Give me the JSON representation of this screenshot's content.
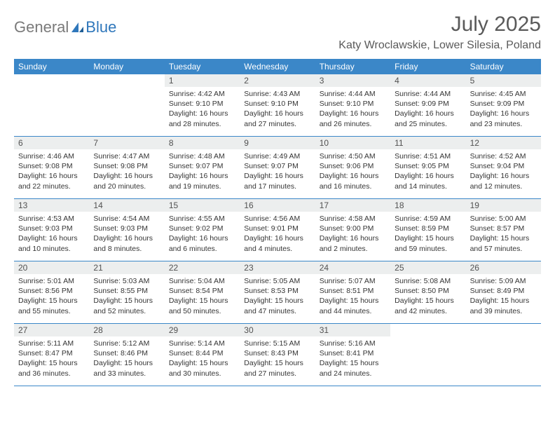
{
  "brand": {
    "part1": "General",
    "part2": "Blue"
  },
  "title": "July 2025",
  "location": "Katy Wroclawskie, Lower Silesia, Poland",
  "colors": {
    "header_bg": "#3b87c8",
    "header_text": "#ffffff",
    "daynum_bg": "#eceeee",
    "daynum_text": "#525252",
    "body_text": "#353535",
    "title_text": "#5a5a5a",
    "logo_gray": "#7a7a7a",
    "logo_blue": "#2f77bb",
    "row_border": "#3b87c8",
    "page_bg": "#ffffff"
  },
  "weekdays": [
    "Sunday",
    "Monday",
    "Tuesday",
    "Wednesday",
    "Thursday",
    "Friday",
    "Saturday"
  ],
  "weeks": [
    [
      {
        "n": "",
        "sunrise": "",
        "sunset": "",
        "daylight": "",
        "empty": true
      },
      {
        "n": "",
        "sunrise": "",
        "sunset": "",
        "daylight": "",
        "empty": true
      },
      {
        "n": "1",
        "sunrise": "Sunrise: 4:42 AM",
        "sunset": "Sunset: 9:10 PM",
        "daylight": "Daylight: 16 hours and 28 minutes."
      },
      {
        "n": "2",
        "sunrise": "Sunrise: 4:43 AM",
        "sunset": "Sunset: 9:10 PM",
        "daylight": "Daylight: 16 hours and 27 minutes."
      },
      {
        "n": "3",
        "sunrise": "Sunrise: 4:44 AM",
        "sunset": "Sunset: 9:10 PM",
        "daylight": "Daylight: 16 hours and 26 minutes."
      },
      {
        "n": "4",
        "sunrise": "Sunrise: 4:44 AM",
        "sunset": "Sunset: 9:09 PM",
        "daylight": "Daylight: 16 hours and 25 minutes."
      },
      {
        "n": "5",
        "sunrise": "Sunrise: 4:45 AM",
        "sunset": "Sunset: 9:09 PM",
        "daylight": "Daylight: 16 hours and 23 minutes."
      }
    ],
    [
      {
        "n": "6",
        "sunrise": "Sunrise: 4:46 AM",
        "sunset": "Sunset: 9:08 PM",
        "daylight": "Daylight: 16 hours and 22 minutes."
      },
      {
        "n": "7",
        "sunrise": "Sunrise: 4:47 AM",
        "sunset": "Sunset: 9:08 PM",
        "daylight": "Daylight: 16 hours and 20 minutes."
      },
      {
        "n": "8",
        "sunrise": "Sunrise: 4:48 AM",
        "sunset": "Sunset: 9:07 PM",
        "daylight": "Daylight: 16 hours and 19 minutes."
      },
      {
        "n": "9",
        "sunrise": "Sunrise: 4:49 AM",
        "sunset": "Sunset: 9:07 PM",
        "daylight": "Daylight: 16 hours and 17 minutes."
      },
      {
        "n": "10",
        "sunrise": "Sunrise: 4:50 AM",
        "sunset": "Sunset: 9:06 PM",
        "daylight": "Daylight: 16 hours and 16 minutes."
      },
      {
        "n": "11",
        "sunrise": "Sunrise: 4:51 AM",
        "sunset": "Sunset: 9:05 PM",
        "daylight": "Daylight: 16 hours and 14 minutes."
      },
      {
        "n": "12",
        "sunrise": "Sunrise: 4:52 AM",
        "sunset": "Sunset: 9:04 PM",
        "daylight": "Daylight: 16 hours and 12 minutes."
      }
    ],
    [
      {
        "n": "13",
        "sunrise": "Sunrise: 4:53 AM",
        "sunset": "Sunset: 9:03 PM",
        "daylight": "Daylight: 16 hours and 10 minutes."
      },
      {
        "n": "14",
        "sunrise": "Sunrise: 4:54 AM",
        "sunset": "Sunset: 9:03 PM",
        "daylight": "Daylight: 16 hours and 8 minutes."
      },
      {
        "n": "15",
        "sunrise": "Sunrise: 4:55 AM",
        "sunset": "Sunset: 9:02 PM",
        "daylight": "Daylight: 16 hours and 6 minutes."
      },
      {
        "n": "16",
        "sunrise": "Sunrise: 4:56 AM",
        "sunset": "Sunset: 9:01 PM",
        "daylight": "Daylight: 16 hours and 4 minutes."
      },
      {
        "n": "17",
        "sunrise": "Sunrise: 4:58 AM",
        "sunset": "Sunset: 9:00 PM",
        "daylight": "Daylight: 16 hours and 2 minutes."
      },
      {
        "n": "18",
        "sunrise": "Sunrise: 4:59 AM",
        "sunset": "Sunset: 8:59 PM",
        "daylight": "Daylight: 15 hours and 59 minutes."
      },
      {
        "n": "19",
        "sunrise": "Sunrise: 5:00 AM",
        "sunset": "Sunset: 8:57 PM",
        "daylight": "Daylight: 15 hours and 57 minutes."
      }
    ],
    [
      {
        "n": "20",
        "sunrise": "Sunrise: 5:01 AM",
        "sunset": "Sunset: 8:56 PM",
        "daylight": "Daylight: 15 hours and 55 minutes."
      },
      {
        "n": "21",
        "sunrise": "Sunrise: 5:03 AM",
        "sunset": "Sunset: 8:55 PM",
        "daylight": "Daylight: 15 hours and 52 minutes."
      },
      {
        "n": "22",
        "sunrise": "Sunrise: 5:04 AM",
        "sunset": "Sunset: 8:54 PM",
        "daylight": "Daylight: 15 hours and 50 minutes."
      },
      {
        "n": "23",
        "sunrise": "Sunrise: 5:05 AM",
        "sunset": "Sunset: 8:53 PM",
        "daylight": "Daylight: 15 hours and 47 minutes."
      },
      {
        "n": "24",
        "sunrise": "Sunrise: 5:07 AM",
        "sunset": "Sunset: 8:51 PM",
        "daylight": "Daylight: 15 hours and 44 minutes."
      },
      {
        "n": "25",
        "sunrise": "Sunrise: 5:08 AM",
        "sunset": "Sunset: 8:50 PM",
        "daylight": "Daylight: 15 hours and 42 minutes."
      },
      {
        "n": "26",
        "sunrise": "Sunrise: 5:09 AM",
        "sunset": "Sunset: 8:49 PM",
        "daylight": "Daylight: 15 hours and 39 minutes."
      }
    ],
    [
      {
        "n": "27",
        "sunrise": "Sunrise: 5:11 AM",
        "sunset": "Sunset: 8:47 PM",
        "daylight": "Daylight: 15 hours and 36 minutes."
      },
      {
        "n": "28",
        "sunrise": "Sunrise: 5:12 AM",
        "sunset": "Sunset: 8:46 PM",
        "daylight": "Daylight: 15 hours and 33 minutes."
      },
      {
        "n": "29",
        "sunrise": "Sunrise: 5:14 AM",
        "sunset": "Sunset: 8:44 PM",
        "daylight": "Daylight: 15 hours and 30 minutes."
      },
      {
        "n": "30",
        "sunrise": "Sunrise: 5:15 AM",
        "sunset": "Sunset: 8:43 PM",
        "daylight": "Daylight: 15 hours and 27 minutes."
      },
      {
        "n": "31",
        "sunrise": "Sunrise: 5:16 AM",
        "sunset": "Sunset: 8:41 PM",
        "daylight": "Daylight: 15 hours and 24 minutes."
      },
      {
        "n": "",
        "sunrise": "",
        "sunset": "",
        "daylight": "",
        "empty": true
      },
      {
        "n": "",
        "sunrise": "",
        "sunset": "",
        "daylight": "",
        "empty": true
      }
    ]
  ]
}
